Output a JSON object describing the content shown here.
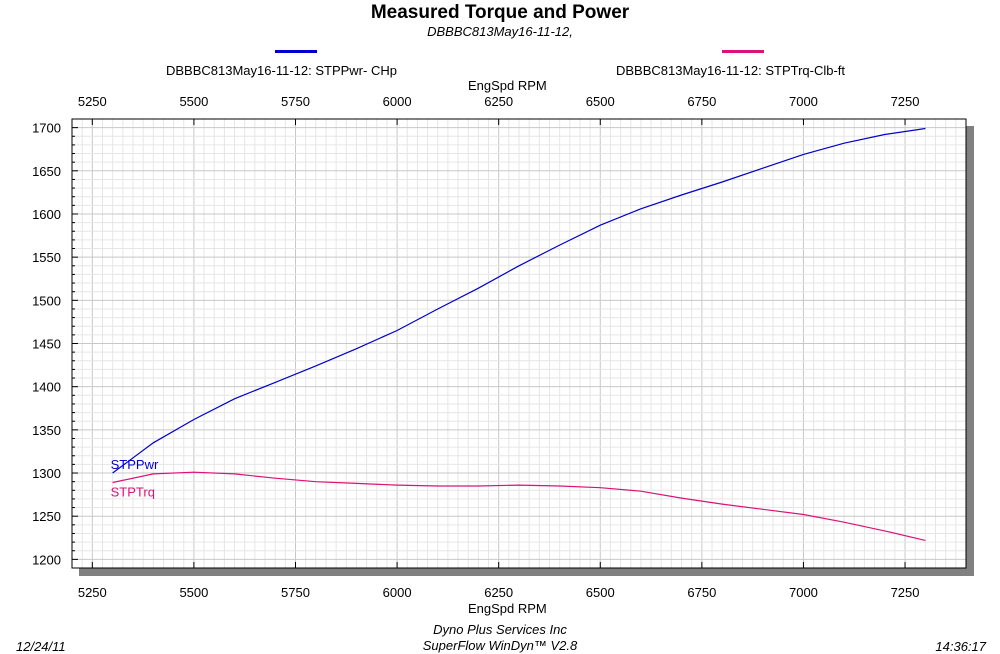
{
  "header": {
    "title": "Measured Torque and Power",
    "subtitle": "DBBBC813May16-11-12,"
  },
  "legend": [
    {
      "label": "DBBBC813May16-11-12: STPPwr- CHp",
      "color": "#0000cc"
    },
    {
      "label": "DBBBC813May16-11-12: STPTrq-Clb-ft",
      "color": "#dd1177"
    }
  ],
  "footer": {
    "date": "12/24/11",
    "company": "Dyno Plus Services Inc",
    "software": "SuperFlow WinDyn™ V2.8",
    "time": "14:36:17"
  },
  "chart_data": {
    "type": "line",
    "title": "Measured Torque and Power",
    "subtitle": "DBBBC813May16-11-12,",
    "xlabel": "EngSpd  RPM",
    "ylabel": "",
    "xlim": [
      5200,
      7400
    ],
    "ylim": [
      1190,
      1710
    ],
    "x_ticks": [
      5250,
      5500,
      5750,
      6000,
      6250,
      6500,
      6750,
      7000,
      7250
    ],
    "y_ticks": [
      1200,
      1250,
      1300,
      1350,
      1400,
      1450,
      1500,
      1550,
      1600,
      1650,
      1700
    ],
    "grid": true,
    "series": [
      {
        "name": "STPPwr",
        "legend_label": "DBBBC813May16-11-12: STPPwr- CHp",
        "color": "#0000cc",
        "x": [
          5300,
          5400,
          5500,
          5600,
          5700,
          5800,
          5900,
          6000,
          6100,
          6200,
          6300,
          6400,
          6500,
          6600,
          6700,
          6800,
          6900,
          7000,
          7100,
          7200,
          7300
        ],
        "values": [
          1300,
          1335,
          1362,
          1386,
          1405,
          1424,
          1444,
          1465,
          1490,
          1514,
          1540,
          1564,
          1587,
          1606,
          1622,
          1637,
          1653,
          1669,
          1682,
          1692,
          1699
        ]
      },
      {
        "name": "STPTrq",
        "legend_label": "DBBBC813May16-11-12: STPTrq-Clb-ft",
        "color": "#dd1177",
        "x": [
          5300,
          5400,
          5500,
          5600,
          5700,
          5800,
          5900,
          6000,
          6100,
          6200,
          6300,
          6400,
          6500,
          6600,
          6700,
          6800,
          6900,
          7000,
          7100,
          7200,
          7300
        ],
        "values": [
          1289,
          1299,
          1301,
          1299,
          1294,
          1290,
          1288,
          1286,
          1285,
          1285,
          1286,
          1285,
          1283,
          1279,
          1271,
          1264,
          1258,
          1252,
          1243,
          1233,
          1222
        ]
      }
    ]
  }
}
